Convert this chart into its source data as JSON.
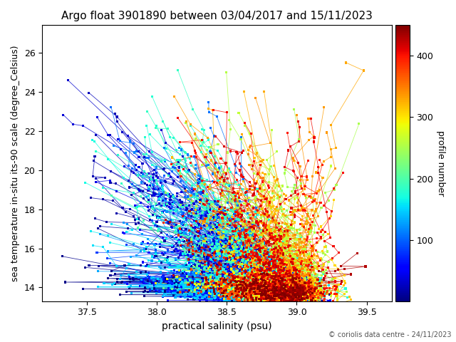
{
  "title": "Argo float 3901890 between 03/04/2017 and 15/11/2023",
  "xlabel": "practical salinity (psu)",
  "ylabel": "sea temperature in-situ its-90 scale (degree_Celsius)",
  "colorbar_label": "profile number",
  "xlim": [
    37.18,
    39.68
  ],
  "ylim": [
    13.3,
    27.4
  ],
  "xticks": [
    37.5,
    38.0,
    38.5,
    39.0,
    39.5
  ],
  "yticks": [
    14,
    16,
    18,
    20,
    22,
    24,
    26
  ],
  "cbar_ticks": [
    100,
    200,
    300,
    400
  ],
  "n_profiles": 450,
  "cbar_vmin": 0,
  "cbar_vmax": 450,
  "copyright": "© coriolis data centre - 24/11/2023",
  "cmap": "jet",
  "background_color": "#ffffff",
  "figsize": [
    6.4,
    4.8
  ],
  "dpi": 100
}
